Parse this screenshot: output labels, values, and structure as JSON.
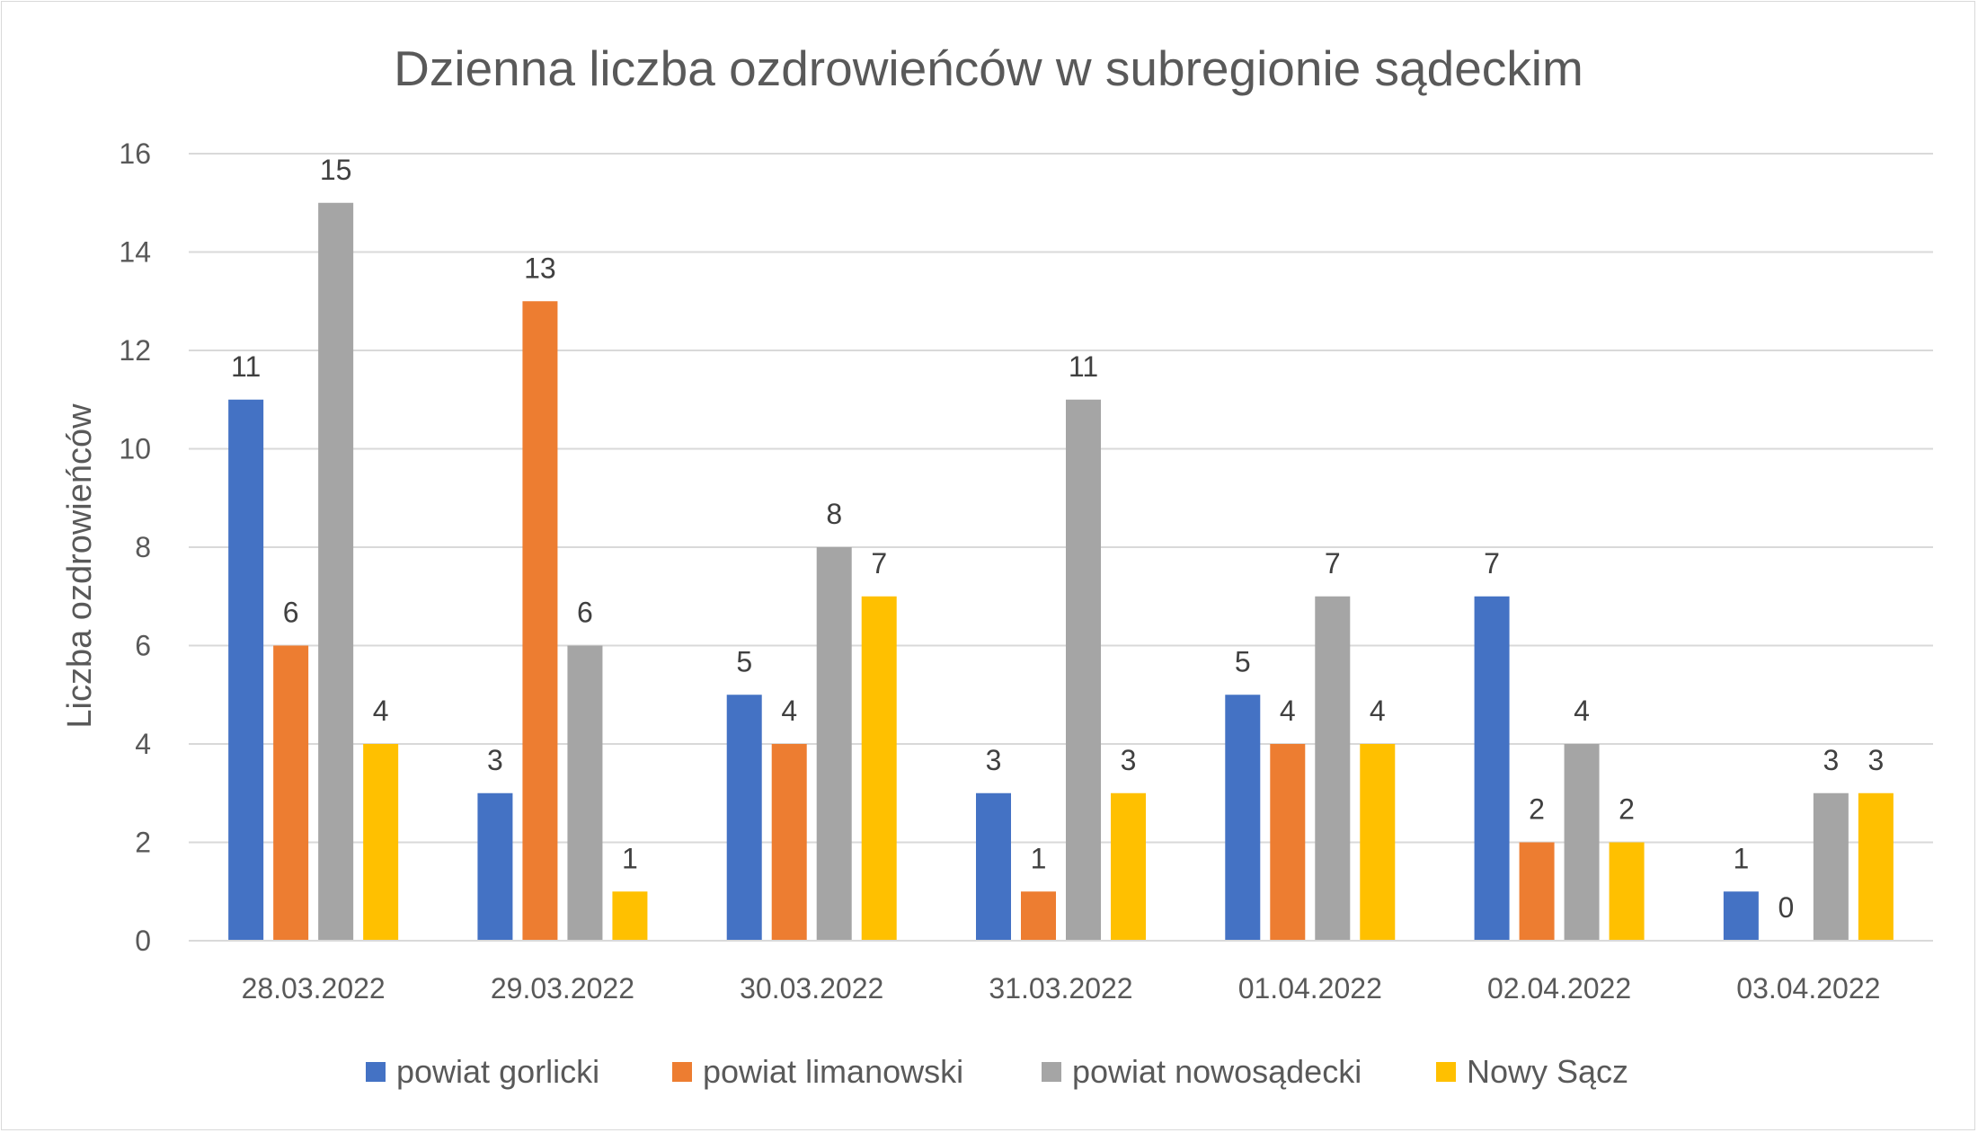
{
  "chart_data": {
    "type": "bar",
    "title": "Dzienna liczba ozdrowieńców w subregionie sądeckim",
    "xlabel": "",
    "ylabel": "Liczba ozdrowieńców",
    "ylim": [
      0,
      16
    ],
    "yticks": [
      0,
      2,
      4,
      6,
      8,
      10,
      12,
      14,
      16
    ],
    "grid": true,
    "legend_position": "bottom",
    "categories": [
      "28.03.2022",
      "29.03.2022",
      "30.03.2022",
      "31.03.2022",
      "01.04.2022",
      "02.04.2022",
      "03.04.2022"
    ],
    "series": [
      {
        "name": "powiat gorlicki",
        "color": "#4472C4",
        "values": [
          11,
          3,
          5,
          3,
          5,
          7,
          1
        ]
      },
      {
        "name": "powiat limanowski",
        "color": "#ED7D31",
        "values": [
          6,
          13,
          4,
          1,
          4,
          2,
          0
        ]
      },
      {
        "name": "powiat nowosądecki",
        "color": "#A5A5A5",
        "values": [
          15,
          6,
          8,
          11,
          7,
          4,
          3
        ]
      },
      {
        "name": "Nowy Sącz",
        "color": "#FFC000",
        "values": [
          4,
          1,
          7,
          3,
          4,
          2,
          3
        ]
      }
    ]
  }
}
